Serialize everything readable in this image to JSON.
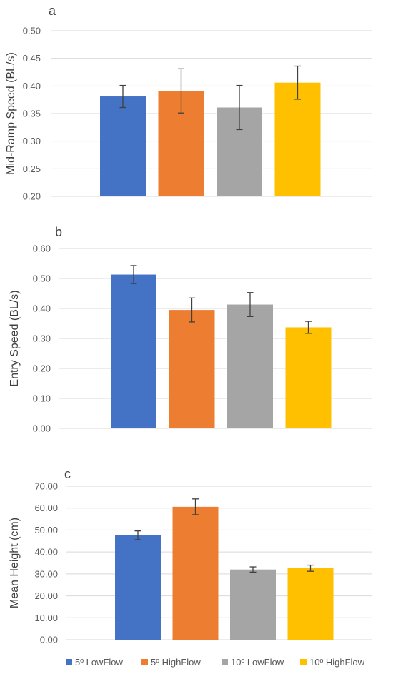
{
  "chart_data": [
    {
      "type": "bar",
      "panel_label": "a",
      "ylabel": "Mid-Ramp Speed (BL/s)",
      "ylim": [
        0.2,
        0.5
      ],
      "yticks": [
        "0.20",
        "0.25",
        "0.30",
        "0.35",
        "0.40",
        "0.45",
        "0.50"
      ],
      "yticks_values": [
        0.2,
        0.25,
        0.3,
        0.35,
        0.4,
        0.45,
        0.5
      ],
      "categories": [
        "5º LowFlow",
        "5º HighFlow",
        "10º LowFlow",
        "10º HighFlow"
      ],
      "values": [
        0.381,
        0.391,
        0.361,
        0.406
      ],
      "errors": [
        0.02,
        0.04,
        0.04,
        0.03
      ],
      "grid": true
    },
    {
      "type": "bar",
      "panel_label": "b",
      "ylabel": "Entry Speed (BL/s)",
      "ylim": [
        0.0,
        0.6
      ],
      "yticks": [
        "0.00",
        "0.10",
        "0.20",
        "0.30",
        "0.40",
        "0.50",
        "0.60"
      ],
      "yticks_values": [
        0.0,
        0.1,
        0.2,
        0.3,
        0.4,
        0.5,
        0.6
      ],
      "categories": [
        "5º LowFlow",
        "5º HighFlow",
        "10º LowFlow",
        "10º HighFlow"
      ],
      "values": [
        0.513,
        0.395,
        0.413,
        0.337
      ],
      "errors": [
        0.03,
        0.04,
        0.04,
        0.02
      ],
      "grid": true
    },
    {
      "type": "bar",
      "panel_label": "c",
      "ylabel": "Mean Height (cm)",
      "ylim": [
        0.0,
        70.0
      ],
      "yticks": [
        "0.00",
        "10.00",
        "20.00",
        "30.00",
        "40.00",
        "50.00",
        "60.00",
        "70.00"
      ],
      "yticks_values": [
        0,
        10,
        20,
        30,
        40,
        50,
        60,
        70
      ],
      "categories": [
        "5º LowFlow",
        "5º HighFlow",
        "10º LowFlow",
        "10º HighFlow"
      ],
      "values": [
        47.6,
        60.6,
        32.0,
        32.6
      ],
      "errors": [
        2.0,
        3.6,
        1.2,
        1.4
      ],
      "grid": true
    }
  ],
  "series_colors": [
    "#4472C4",
    "#ED7D31",
    "#A5A5A5",
    "#FFC000"
  ],
  "legend": {
    "position": "bottom",
    "items": [
      "5º LowFlow",
      "5º HighFlow",
      "10º LowFlow",
      "10º HighFlow"
    ]
  }
}
